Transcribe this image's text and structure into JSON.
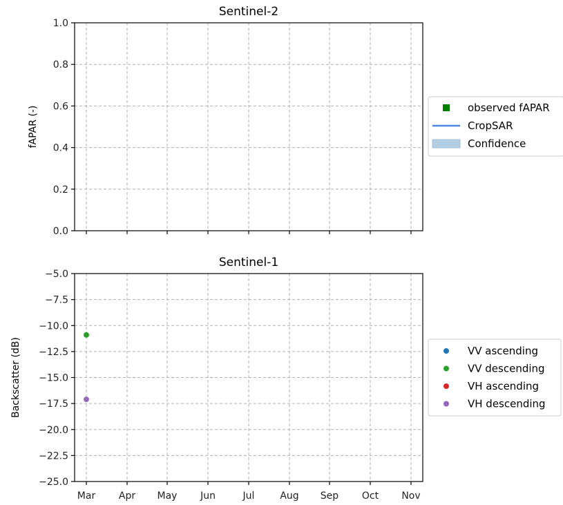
{
  "chart_data": [
    {
      "type": "scatter",
      "title": "Sentinel-2",
      "xlabel": "",
      "ylabel": "fAPAR (-)",
      "ylim": [
        0.0,
        1.0
      ],
      "yticks": [
        0.0,
        0.2,
        0.4,
        0.6,
        0.8,
        1.0
      ],
      "ytick_labels": [
        "0.0",
        "0.2",
        "0.4",
        "0.6",
        "0.8",
        "1.0"
      ],
      "xticks": [
        "Mar",
        "Apr",
        "May",
        "Jun",
        "Jul",
        "Aug",
        "Sep",
        "Oct",
        "Nov"
      ],
      "xtick_labels_shown": false,
      "grid": true,
      "legend_position": "right",
      "legend": [
        {
          "label": "observed fAPAR",
          "marker": "square",
          "color": "#008000"
        },
        {
          "label": "CropSAR",
          "marker": "line",
          "color": "#4b86e0"
        },
        {
          "label": "Confidence",
          "marker": "patch",
          "color": "#b3cde3"
        }
      ],
      "series": []
    },
    {
      "type": "scatter",
      "title": "Sentinel-1",
      "xlabel": "",
      "ylabel": "Backscatter (dB)",
      "ylim": [
        -25.0,
        -5.0
      ],
      "yticks": [
        -25.0,
        -22.5,
        -20.0,
        -17.5,
        -15.0,
        -12.5,
        -10.0,
        -7.5,
        -5.0
      ],
      "ytick_labels": [
        "−25.0",
        "−22.5",
        "−20.0",
        "−17.5",
        "−15.0",
        "−12.5",
        "−10.0",
        "−7.5",
        "−5.0"
      ],
      "xticks": [
        "Mar",
        "Apr",
        "May",
        "Jun",
        "Jul",
        "Aug",
        "Sep",
        "Oct",
        "Nov"
      ],
      "xtick_labels_shown": true,
      "grid": true,
      "legend_position": "right",
      "legend": [
        {
          "label": "VV ascending",
          "marker": "circle",
          "color": "#1f77b4"
        },
        {
          "label": "VV descending",
          "marker": "circle",
          "color": "#2ca02c"
        },
        {
          "label": "VH ascending",
          "marker": "circle",
          "color": "#d62728"
        },
        {
          "label": "VH descending",
          "marker": "circle",
          "color": "#9467bd"
        }
      ],
      "series": [
        {
          "name": "VV ascending",
          "color": "#1f77b4",
          "points": []
        },
        {
          "name": "VV descending",
          "color": "#2ca02c",
          "points": [
            {
              "x": "Mar",
              "y": -10.9
            }
          ]
        },
        {
          "name": "VH ascending",
          "color": "#d62728",
          "points": []
        },
        {
          "name": "VH descending",
          "color": "#9467bd",
          "points": [
            {
              "x": "Mar",
              "y": -17.1
            }
          ]
        }
      ]
    }
  ]
}
